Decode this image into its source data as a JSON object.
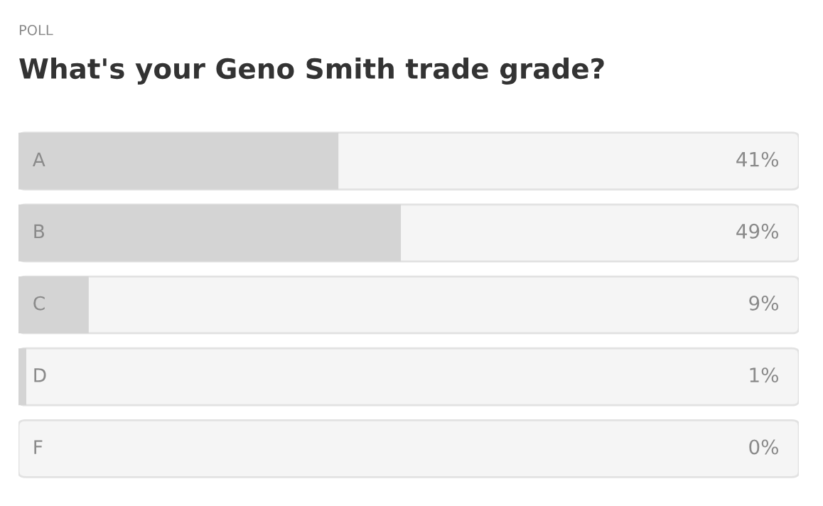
{
  "chart_data": {
    "type": "bar",
    "orientation": "horizontal",
    "title": "What's your Geno Smith trade grade?",
    "annotations": [
      "POLL"
    ],
    "categories": [
      "A",
      "B",
      "C",
      "D",
      "F"
    ],
    "values": [
      41,
      49,
      9,
      1,
      0
    ],
    "value_labels": [
      "41%",
      "49%",
      "9%",
      "1%",
      "0%"
    ],
    "color": "#d4d4d4",
    "xlim": [
      0,
      100
    ]
  }
}
